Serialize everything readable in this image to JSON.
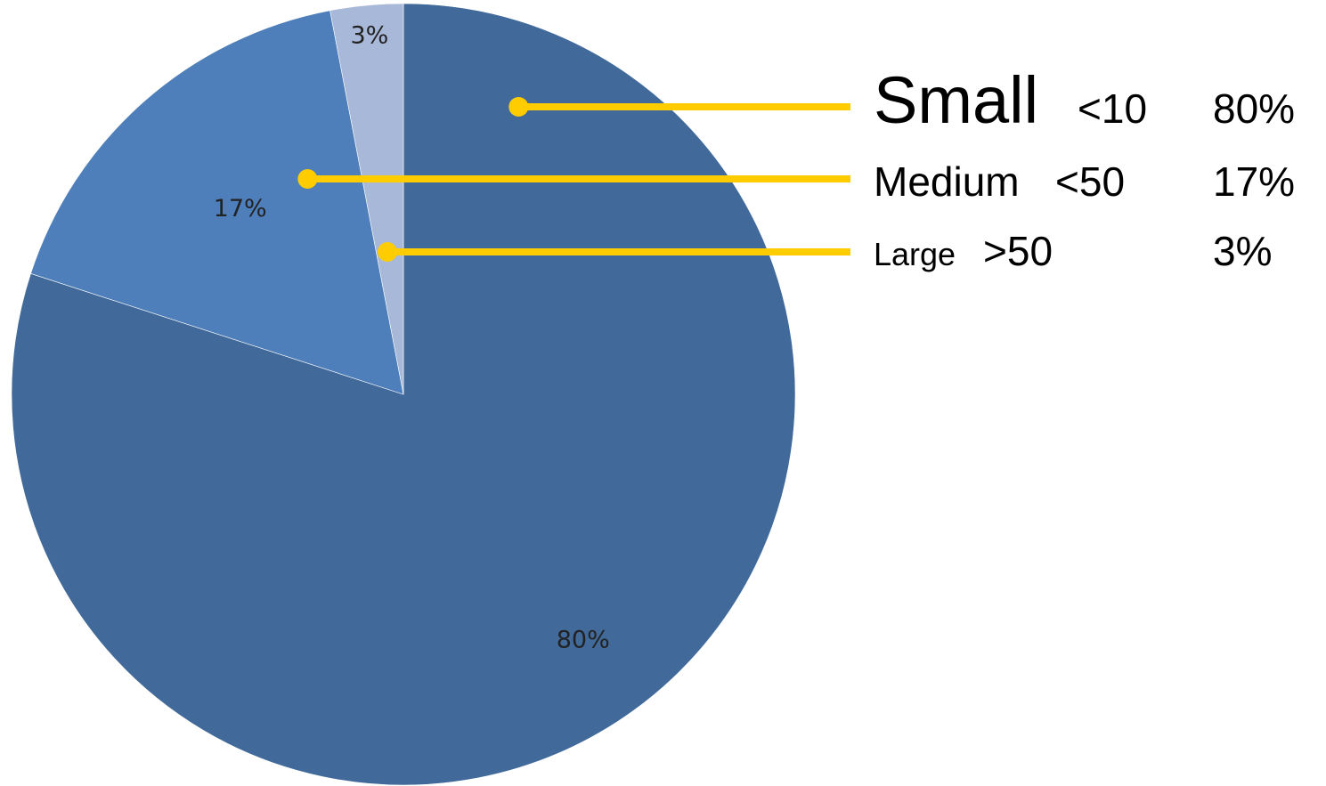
{
  "chart_data": {
    "type": "pie",
    "title": "",
    "start": "12 o'clock",
    "direction": "clockwise",
    "slices": [
      {
        "label": "Small",
        "qualifier": "<10",
        "value": 80,
        "value_label": "80%",
        "color": "#416A9A"
      },
      {
        "label": "Medium",
        "qualifier": "<50",
        "value": 17,
        "value_label": "17%",
        "color": "#4E7FBA"
      },
      {
        "label": "Large",
        "qualifier": ">50",
        "value": 3,
        "value_label": "3%",
        "color": "#A8B8D8"
      }
    ],
    "legend": {
      "placement": "right",
      "callout_color": "#FFCC00",
      "entries": [
        {
          "name": "Small",
          "qualifier": "<10",
          "value": "80%"
        },
        {
          "name": "Medium",
          "qualifier": "<50",
          "value": "17%"
        },
        {
          "name": "Large",
          "qualifier": ">50",
          "value": "3%"
        }
      ]
    }
  }
}
